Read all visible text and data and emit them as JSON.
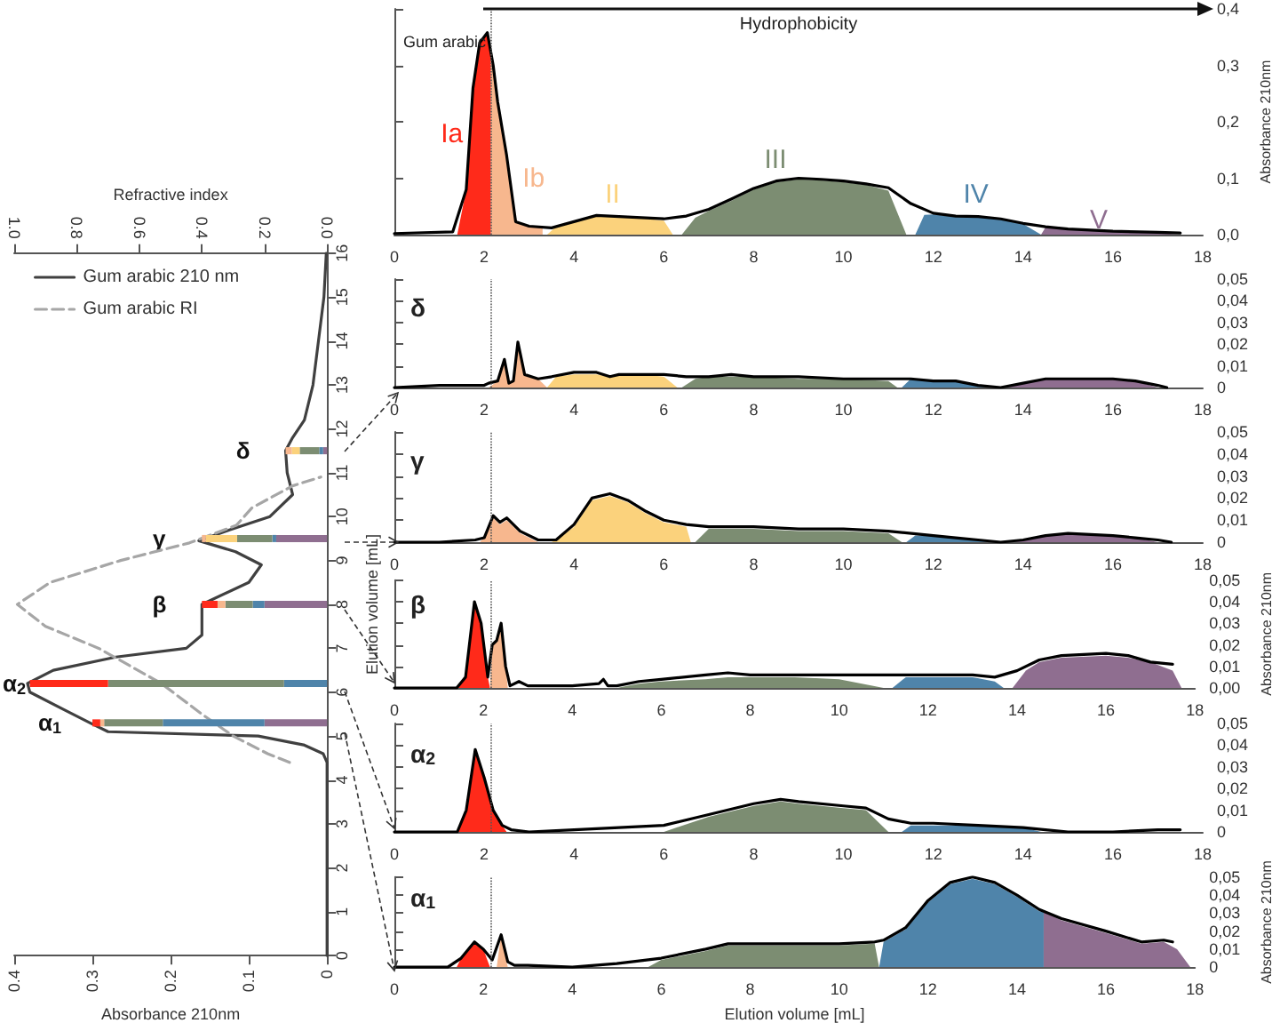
{
  "chart_data": [
    {
      "type": "line",
      "orientation": "horizontal",
      "xlabel": "Absorbance 210nm",
      "x2label": "Refractive index",
      "ylabel": "Elution volume [mL]",
      "xlim": [
        0.4,
        0
      ],
      "xticks": [
        0.4,
        0.3,
        0.2,
        0.1,
        0
      ],
      "x2lim": [
        1,
        0
      ],
      "x2ticks": [
        {
          "value": 1,
          "label": "1.0"
        },
        {
          "value": 0.8,
          "label": "0.8"
        },
        {
          "value": 0.6,
          "label": "0.6"
        },
        {
          "value": 0.4,
          "label": "0.4"
        },
        {
          "value": 0.2,
          "label": "0.2"
        },
        {
          "value": 0,
          "label": "0.0"
        }
      ],
      "ylim": [
        0,
        16
      ],
      "yticks": [
        0,
        1,
        2,
        3,
        4,
        5,
        6,
        7,
        8,
        9,
        10,
        11,
        12,
        13,
        14,
        15,
        16
      ],
      "legend": "top left",
      "marker": "none",
      "stacked": true,
      "grid": false,
      "x": [
        5.3,
        6.2,
        8.0,
        9.5,
        11.5
      ],
      "annotations": [
        {
          "text": "α$_{1}$",
          "x": 0.3,
          "y": 5.3
        },
        {
          "text": "α$_{2}$",
          "x": 0.38,
          "y": 6.2
        },
        {
          "text": "β",
          "x": 0.16,
          "y": 8.0
        },
        {
          "text": "γ",
          "x": 0.16,
          "y": 9.5
        },
        {
          "text": "δ",
          "x": 0.053,
          "y": 11.5
        }
      ],
      "series": [
        {
          "name": "Gum arabic 210 nm",
          "color": "#404040",
          "line_style": "solid",
          "x": [
            0,
            4.4,
            4.6,
            4.8,
            5.0,
            5.1,
            5.3,
            5.6,
            6.0,
            6.2,
            6.5,
            6.8,
            7.0,
            7.3,
            8.0,
            8.5,
            8.9,
            9.2,
            9.45,
            9.7,
            10.0,
            10.5,
            11.0,
            11.5,
            11.8,
            12.2,
            13,
            14,
            15,
            16
          ],
          "values": [
            0,
            0,
            0.005,
            0.03,
            0.088,
            0.28,
            0.303,
            0.336,
            0.38,
            0.383,
            0.35,
            0.27,
            0.18,
            0.16,
            0.16,
            0.1,
            0.084,
            0.117,
            0.164,
            0.124,
            0.073,
            0.044,
            0.051,
            0.053,
            0.044,
            0.029,
            0.018,
            0.011,
            0.004,
            0.001
          ]
        },
        {
          "name": "Gum arabic RI",
          "axis": "x2",
          "color": "#a6a6a6",
          "line_style": "dashed",
          "x": [
            4.4,
            4.6,
            5.0,
            5.5,
            6.2,
            7.0,
            7.5,
            8.0,
            8.5,
            9.0,
            9.4,
            9.8,
            10.2,
            10.7,
            10.9
          ],
          "values": [
            0.12,
            0.19,
            0.3,
            0.4,
            0.53,
            0.73,
            0.9,
            0.99,
            0.885,
            0.66,
            0.44,
            0.29,
            0.24,
            0.11,
            0.02
          ]
        },
        {
          "type": "bar",
          "color": "#8f6e90",
          "values": [
            0.08,
            null,
            0.08,
            0.065,
            0.005
          ]
        },
        {
          "type": "bar",
          "color": "#4f84aa",
          "values": [
            0.13,
            0.055,
            0.015,
            0.005,
            0.005
          ]
        },
        {
          "type": "bar",
          "color": "#7c8d72",
          "values": [
            0.075,
            0.225,
            0.035,
            0.045,
            0.025
          ]
        },
        {
          "type": "bar",
          "color": "#fbd27c",
          "values": [
            null,
            null,
            null,
            0.04,
            0.01
          ]
        },
        {
          "type": "bar",
          "color": "#f7b78e",
          "values": [
            0.005,
            null,
            0.01,
            0.005,
            0.008
          ]
        },
        {
          "type": "bar",
          "color": "#ff2a1a",
          "values": [
            0.01,
            0.1,
            0.02,
            null,
            null
          ]
        }
      ]
    },
    {
      "type": "area",
      "title": "Gum arabic",
      "ylabel": "Absorbance 210nm",
      "xlim": [
        0,
        18
      ],
      "xticks": [
        0,
        2,
        4,
        6,
        8,
        10,
        12,
        14,
        16,
        18
      ],
      "ylim": [
        0,
        0.4
      ],
      "yticks": [
        {
          "value": 0,
          "label": "0,0"
        },
        {
          "value": 0.1,
          "label": "0,1"
        },
        {
          "value": 0.2,
          "label": "0,2"
        },
        {
          "value": 0.3,
          "label": "0,3"
        },
        {
          "value": 0.4,
          "label": "0,4"
        }
      ],
      "marker": "none",
      "legend": false,
      "grid": false,
      "ref_lines": [
        {
          "axis": "x",
          "value": 2.15,
          "line_style": "dotted",
          "color": "#555555"
        }
      ],
      "annotations": [
        "Hydrophobicity"
      ],
      "series": [
        {
          "type": "line",
          "color": "#000000",
          "x": [
            0,
            1.3,
            1.6,
            1.75,
            1.9,
            2.07,
            2.2,
            2.3,
            2.5,
            2.7,
            3,
            3.5,
            4,
            4.5,
            5,
            5.5,
            6,
            6.5,
            7,
            7.5,
            8,
            8.5,
            9,
            9.5,
            10,
            10.5,
            11,
            11.5,
            12,
            12.5,
            13,
            13.5,
            14,
            14.5,
            15,
            16,
            17,
            17.5
          ],
          "values": [
            0.002,
            0.005,
            0.08,
            0.26,
            0.34,
            0.358,
            0.3,
            0.235,
            0.14,
            0.023,
            0.015,
            0.012,
            0.023,
            0.034,
            0.032,
            0.03,
            0.028,
            0.033,
            0.045,
            0.063,
            0.082,
            0.095,
            0.1,
            0.098,
            0.095,
            0.09,
            0.083,
            0.055,
            0.038,
            0.033,
            0.032,
            0.028,
            0.02,
            0.014,
            0.01,
            0.006,
            0.004,
            0.003
          ]
        },
        {
          "name": "Ia",
          "color": "#ff2a1a",
          "x": [
            1.4,
            1.6,
            1.75,
            1.9,
            2.07,
            2.15,
            2.15
          ],
          "values": [
            0,
            0.08,
            0.26,
            0.34,
            0.358,
            0.32,
            0
          ]
        },
        {
          "name": "Ib",
          "color": "#f7b78e",
          "x": [
            2.15,
            2.15,
            2.3,
            2.5,
            2.7,
            3,
            3.3,
            3.3
          ],
          "values": [
            0,
            0.32,
            0.235,
            0.14,
            0.023,
            0.015,
            0.013,
            0
          ]
        },
        {
          "name": "II",
          "color": "#fbd27c",
          "x": [
            3.4,
            3.6,
            4,
            4.5,
            5,
            5.5,
            6,
            6.2
          ],
          "values": [
            0,
            0.014,
            0.022,
            0.033,
            0.031,
            0.029,
            0.025,
            0
          ]
        },
        {
          "name": "III",
          "color": "#7c8d72",
          "x": [
            6.4,
            6.7,
            7,
            7.5,
            8,
            8.5,
            9,
            9.5,
            10,
            10.5,
            11,
            11.4
          ],
          "values": [
            0,
            0.03,
            0.042,
            0.06,
            0.08,
            0.093,
            0.098,
            0.096,
            0.093,
            0.088,
            0.078,
            0
          ]
        },
        {
          "name": "IV",
          "color": "#4f84aa",
          "x": [
            11.6,
            11.8,
            12,
            12.5,
            13,
            13.5,
            14,
            14.4
          ],
          "values": [
            0,
            0.035,
            0.036,
            0.032,
            0.031,
            0.027,
            0.019,
            0
          ]
        },
        {
          "name": "V",
          "color": "#8f6e90",
          "x": [
            14.4,
            14.5,
            15,
            16,
            17,
            17.5
          ],
          "values": [
            0,
            0.013,
            0.009,
            0.005,
            0.003,
            0
          ]
        }
      ]
    },
    {
      "type": "area",
      "title": "δ",
      "xlim": [
        0,
        18
      ],
      "xticks": [
        0,
        2,
        4,
        6,
        8,
        10,
        12,
        14,
        16,
        18
      ],
      "ylim": [
        0,
        0.05
      ],
      "yticks": [
        0,
        {
          "value": 0.01,
          "label": "0,01"
        },
        {
          "value": 0.02,
          "label": "0,02"
        },
        {
          "value": 0.03,
          "label": "0,03"
        },
        {
          "value": 0.04,
          "label": "0,04"
        },
        {
          "value": 0.05,
          "label": "0,05"
        }
      ],
      "marker": "none",
      "legend": false,
      "grid": false,
      "ref_lines": [
        {
          "axis": "x",
          "value": 2.15,
          "line_style": "dotted",
          "color": "#555555"
        }
      ],
      "series": [
        {
          "type": "line",
          "color": "#000000",
          "x": [
            0,
            1,
            2,
            2.1,
            2.3,
            2.45,
            2.55,
            2.65,
            2.75,
            2.9,
            3.2,
            3.5,
            4,
            4.5,
            4.8,
            5,
            5.5,
            6,
            6.5,
            7,
            7.5,
            8,
            9,
            10,
            11,
            11.5,
            12,
            12.5,
            13,
            13.5,
            14,
            14.5,
            15,
            15.5,
            16,
            16.5,
            17,
            17.2
          ],
          "values": [
            0,
            0.001,
            0.001,
            0.002,
            0.003,
            0.013,
            0.002,
            0.003,
            0.021,
            0.006,
            0.004,
            0.005,
            0.007,
            0.007,
            0.005,
            0.006,
            0.006,
            0.006,
            0.005,
            0.005,
            0.006,
            0.005,
            0.005,
            0.004,
            0.004,
            0.004,
            0.003,
            0.003,
            0.001,
            0,
            0.002,
            0.004,
            0.004,
            0.004,
            0.004,
            0.003,
            0.001,
            0
          ]
        },
        {
          "color": "#f7b78e",
          "x": [
            2.1,
            2.3,
            2.45,
            2.55,
            2.65,
            2.75,
            2.9,
            3.2,
            3.4
          ],
          "values": [
            0,
            0.003,
            0.013,
            0.002,
            0.003,
            0.021,
            0.006,
            0.004,
            0
          ]
        },
        {
          "color": "#fbd27c",
          "x": [
            3.4,
            3.6,
            4,
            4.5,
            4.8,
            5,
            5.5,
            6,
            6.3
          ],
          "values": [
            0,
            0.005,
            0.006,
            0.006,
            0.005,
            0.006,
            0.006,
            0.005,
            0
          ]
        },
        {
          "color": "#7c8d72",
          "x": [
            6.4,
            6.7,
            7,
            7.5,
            8,
            9,
            10,
            11,
            11.2
          ],
          "values": [
            0,
            0.004,
            0.005,
            0.005,
            0.005,
            0.004,
            0.004,
            0.003,
            0
          ]
        },
        {
          "color": "#4f84aa",
          "x": [
            11.3,
            11.5,
            12,
            12.5,
            13,
            13.4
          ],
          "values": [
            0,
            0.004,
            0.003,
            0.003,
            0.001,
            0
          ]
        },
        {
          "color": "#8f6e90",
          "x": [
            13.6,
            14,
            14.5,
            15,
            15.5,
            16,
            16.5,
            17
          ],
          "values": [
            0,
            0.002,
            0.004,
            0.004,
            0.004,
            0.004,
            0.003,
            0
          ]
        }
      ]
    },
    {
      "type": "area",
      "title": "γ",
      "xlim": [
        0,
        18
      ],
      "xticks": [
        0,
        2,
        4,
        6,
        8,
        10,
        12,
        14,
        16,
        18
      ],
      "ylim": [
        0,
        0.05
      ],
      "yticks": [
        0,
        {
          "value": 0.01,
          "label": "0,01"
        },
        {
          "value": 0.02,
          "label": "0,02"
        },
        {
          "value": 0.03,
          "label": "0,03"
        },
        {
          "value": 0.04,
          "label": "0,04"
        },
        {
          "value": 0.05,
          "label": "0,05"
        }
      ],
      "marker": "none",
      "legend": false,
      "grid": false,
      "ref_lines": [
        {
          "axis": "x",
          "value": 2.15,
          "line_style": "dotted",
          "color": "#555555"
        }
      ],
      "series": [
        {
          "type": "line",
          "color": "#000000",
          "x": [
            0,
            1,
            1.8,
            2,
            2.2,
            2.35,
            2.5,
            2.8,
            3.2,
            3.6,
            4,
            4.4,
            4.8,
            5.2,
            5.6,
            6,
            6.5,
            7,
            8,
            9,
            10,
            11,
            12,
            12.5,
            13,
            13.5,
            14,
            14.5,
            15,
            16,
            16.5,
            17,
            17.3
          ],
          "values": [
            0,
            0,
            0.001,
            0.002,
            0.012,
            0.009,
            0.011,
            0.005,
            0.001,
            0.001,
            0.008,
            0.02,
            0.022,
            0.019,
            0.014,
            0.01,
            0.008,
            0.007,
            0.007,
            0.006,
            0.006,
            0.005,
            0.003,
            0.002,
            0.001,
            0,
            0.001,
            0.003,
            0.004,
            0.003,
            0.002,
            0.001,
            0
          ]
        },
        {
          "color": "#f7b78e",
          "x": [
            1.9,
            2,
            2.2,
            2.35,
            2.5,
            2.8,
            3.2
          ],
          "values": [
            0,
            0.002,
            0.011,
            0.008,
            0.01,
            0.004,
            0
          ]
        },
        {
          "color": "#fbd27c",
          "x": [
            3.5,
            3.6,
            4,
            4.4,
            4.8,
            5.2,
            5.6,
            6,
            6.5,
            6.6
          ],
          "values": [
            0,
            0.001,
            0.007,
            0.019,
            0.021,
            0.018,
            0.013,
            0.009,
            0.007,
            0
          ]
        },
        {
          "color": "#7c8d72",
          "x": [
            6.7,
            7,
            8,
            9,
            10,
            11,
            11.3
          ],
          "values": [
            0,
            0.006,
            0.006,
            0.005,
            0.005,
            0.004,
            0
          ]
        },
        {
          "color": "#4f84aa",
          "x": [
            11.4,
            11.6,
            12,
            12.5,
            13,
            13.4
          ],
          "values": [
            0,
            0.003,
            0.003,
            0.002,
            0.001,
            0
          ]
        },
        {
          "color": "#8f6e90",
          "x": [
            13.7,
            14,
            14.5,
            15,
            16,
            16.5,
            17
          ],
          "values": [
            0,
            0.001,
            0.003,
            0.004,
            0.003,
            0.002,
            0
          ]
        }
      ]
    },
    {
      "type": "area",
      "title": "β",
      "ylabel": "Absorbance 210nm",
      "xlim": [
        0,
        18
      ],
      "xticks": [
        0,
        2,
        4,
        6,
        8,
        10,
        12,
        14,
        16,
        18
      ],
      "ylim": [
        0,
        0.05
      ],
      "yticks": [
        {
          "value": 0,
          "label": "0,00"
        },
        {
          "value": 0.01,
          "label": "0,01"
        },
        {
          "value": 0.02,
          "label": "0,02"
        },
        {
          "value": 0.03,
          "label": "0,03"
        },
        {
          "value": 0.04,
          "label": "0,04"
        },
        {
          "value": 0.05,
          "label": "0,05"
        }
      ],
      "marker": "none",
      "legend": false,
      "grid": false,
      "ref_lines": [
        {
          "axis": "x",
          "value": 2.15,
          "line_style": "dotted",
          "color": "#555555"
        }
      ],
      "series": [
        {
          "type": "line",
          "color": "#000000",
          "x": [
            0,
            1.4,
            1.6,
            1.8,
            1.95,
            2.1,
            2.2,
            2.3,
            2.4,
            2.5,
            2.6,
            2.8,
            3,
            4,
            4.6,
            4.7,
            4.8,
            5,
            5.5,
            6,
            7,
            7.5,
            8,
            9,
            10,
            11,
            12,
            13,
            13.5,
            14,
            14.5,
            15,
            16,
            16.5,
            17,
            17.5
          ],
          "values": [
            0,
            0,
            0.005,
            0.04,
            0.03,
            0.005,
            0.02,
            0.022,
            0.03,
            0.01,
            0.001,
            0.003,
            0.001,
            0.001,
            0.002,
            0.004,
            0.001,
            0.001,
            0.003,
            0.004,
            0.006,
            0.007,
            0.006,
            0.006,
            0.006,
            0.006,
            0.006,
            0.006,
            0.005,
            0.008,
            0.013,
            0.015,
            0.016,
            0.015,
            0.012,
            0.011
          ]
        },
        {
          "color": "#ff2a1a",
          "x": [
            1.4,
            1.6,
            1.8,
            1.95,
            2.1,
            2.15
          ],
          "values": [
            0,
            0.005,
            0.04,
            0.03,
            0.005,
            0
          ]
        },
        {
          "color": "#f7b78e",
          "x": [
            2.15,
            2.2,
            2.3,
            2.4,
            2.5,
            2.55
          ],
          "values": [
            0,
            0.02,
            0.022,
            0.03,
            0.01,
            0
          ]
        },
        {
          "color": "#7c8d72",
          "x": [
            5,
            5.5,
            6,
            7,
            7.5,
            8,
            9,
            10,
            11
          ],
          "values": [
            0,
            0.002,
            0.003,
            0.004,
            0.005,
            0.005,
            0.005,
            0.004,
            0
          ]
        },
        {
          "color": "#4f84aa",
          "x": [
            11.2,
            11.5,
            12,
            13,
            13.5,
            13.7
          ],
          "values": [
            0,
            0.005,
            0.005,
            0.005,
            0.003,
            0
          ]
        },
        {
          "color": "#8f6e90",
          "x": [
            13.9,
            14.2,
            14.5,
            15,
            16,
            16.5,
            17,
            17.5,
            17.7
          ],
          "values": [
            0,
            0.008,
            0.012,
            0.014,
            0.015,
            0.014,
            0.012,
            0.008,
            0
          ]
        }
      ]
    },
    {
      "type": "area",
      "title": "α$_{2}$",
      "xlim": [
        0,
        18
      ],
      "xticks": [
        0,
        2,
        4,
        6,
        8,
        10,
        12,
        14,
        16,
        18
      ],
      "ylim": [
        0,
        0.05
      ],
      "yticks": [
        0,
        {
          "value": 0.01,
          "label": "0,01"
        },
        {
          "value": 0.02,
          "label": "0,02"
        },
        {
          "value": 0.03,
          "label": "0,03"
        },
        {
          "value": 0.04,
          "label": "0,04"
        },
        {
          "value": 0.05,
          "label": "0,05"
        }
      ],
      "marker": "none",
      "legend": false,
      "grid": false,
      "ref_lines": [
        {
          "axis": "x",
          "value": 2.15,
          "line_style": "dotted",
          "color": "#555555"
        }
      ],
      "series": [
        {
          "type": "line",
          "color": "#000000",
          "x": [
            0,
            1.4,
            1.6,
            1.8,
            2,
            2.2,
            2.4,
            2.6,
            3,
            4,
            5,
            6,
            7,
            8,
            8.6,
            9,
            10,
            10.5,
            11,
            11.5,
            12,
            13,
            14,
            14.5,
            15,
            16,
            17,
            17.5
          ],
          "values": [
            0,
            0,
            0.01,
            0.038,
            0.025,
            0.01,
            0.003,
            0.001,
            0,
            0.001,
            0.002,
            0.003,
            0.008,
            0.013,
            0.015,
            0.014,
            0.012,
            0.011,
            0.006,
            0.004,
            0.004,
            0.003,
            0.002,
            0.001,
            0,
            0,
            0.001,
            0.001
          ]
        },
        {
          "color": "#ff2a1a",
          "x": [
            1.4,
            1.6,
            1.8,
            2,
            2.2,
            2.4,
            2.5
          ],
          "values": [
            0,
            0.01,
            0.038,
            0.025,
            0.01,
            0.003,
            0
          ]
        },
        {
          "color": "#7c8d72",
          "x": [
            6,
            7,
            8,
            8.6,
            9,
            10,
            10.5,
            11
          ],
          "values": [
            0,
            0.007,
            0.012,
            0.014,
            0.013,
            0.011,
            0.01,
            0
          ]
        },
        {
          "color": "#4f84aa",
          "x": [
            11.3,
            11.5,
            12,
            13,
            14,
            14.4
          ],
          "values": [
            0,
            0.003,
            0.003,
            0.003,
            0.002,
            0
          ]
        }
      ]
    },
    {
      "type": "area",
      "title": "α$_{1}$",
      "xlabel": "Elution volume [mL]",
      "ylabel": "Absorbance 210nm",
      "xlim": [
        0,
        18
      ],
      "xticks": [
        0,
        2,
        4,
        6,
        8,
        10,
        12,
        14,
        16,
        18
      ],
      "ylim": [
        0,
        0.05
      ],
      "yticks": [
        0,
        {
          "value": 0.01,
          "label": "0,01"
        },
        {
          "value": 0.02,
          "label": "0,02"
        },
        {
          "value": 0.03,
          "label": "0,03"
        },
        {
          "value": 0.04,
          "label": "0,04"
        },
        {
          "value": 0.05,
          "label": "0,05"
        }
      ],
      "marker": "none",
      "legend": false,
      "grid": false,
      "ref_lines": [
        {
          "axis": "x",
          "value": 2.15,
          "line_style": "dotted",
          "color": "#555555"
        }
      ],
      "series": [
        {
          "type": "line",
          "color": "#000000",
          "x": [
            0,
            1.2,
            1.5,
            1.8,
            2,
            2.2,
            2.4,
            2.55,
            2.7,
            3,
            4,
            5,
            6,
            7,
            7.5,
            8,
            9,
            10,
            10.8,
            11,
            11.5,
            12,
            12.5,
            13,
            13.5,
            14,
            14.5,
            15,
            16,
            16.8,
            17.3,
            17.5
          ],
          "values": [
            0,
            0,
            0.005,
            0.014,
            0.01,
            0.004,
            0.018,
            0.003,
            0.001,
            0.001,
            0,
            0.002,
            0.005,
            0.01,
            0.013,
            0.013,
            0.013,
            0.013,
            0.014,
            0.015,
            0.022,
            0.037,
            0.047,
            0.05,
            0.047,
            0.04,
            0.032,
            0.027,
            0.02,
            0.014,
            0.015,
            0.014
          ]
        },
        {
          "color": "#ff2a1a",
          "x": [
            1.4,
            1.5,
            1.8,
            2,
            2.15
          ],
          "values": [
            0,
            0.005,
            0.013,
            0.01,
            0
          ]
        },
        {
          "color": "#f7b78e",
          "x": [
            2.3,
            2.4,
            2.55
          ],
          "values": [
            0,
            0.018,
            0
          ]
        },
        {
          "color": "#7c8d72",
          "x": [
            5.7,
            6,
            7,
            7.5,
            8,
            9,
            10,
            10.8,
            10.9
          ],
          "values": [
            0,
            0.004,
            0.009,
            0.012,
            0.012,
            0.012,
            0.012,
            0.013,
            0
          ]
        },
        {
          "color": "#4f84aa",
          "x": [
            10.9,
            11,
            11.5,
            12,
            12.5,
            13,
            13.5,
            14,
            14.5,
            14.6,
            14.6
          ],
          "values": [
            0,
            0.014,
            0.021,
            0.036,
            0.046,
            0.049,
            0.046,
            0.039,
            0.031,
            0.031,
            0
          ]
        },
        {
          "color": "#8f6e90",
          "x": [
            14.6,
            14.6,
            15,
            16,
            16.8,
            17.3,
            17.6,
            17.9
          ],
          "values": [
            0,
            0.031,
            0.026,
            0.019,
            0.013,
            0.014,
            0.01,
            0
          ]
        }
      ]
    }
  ]
}
